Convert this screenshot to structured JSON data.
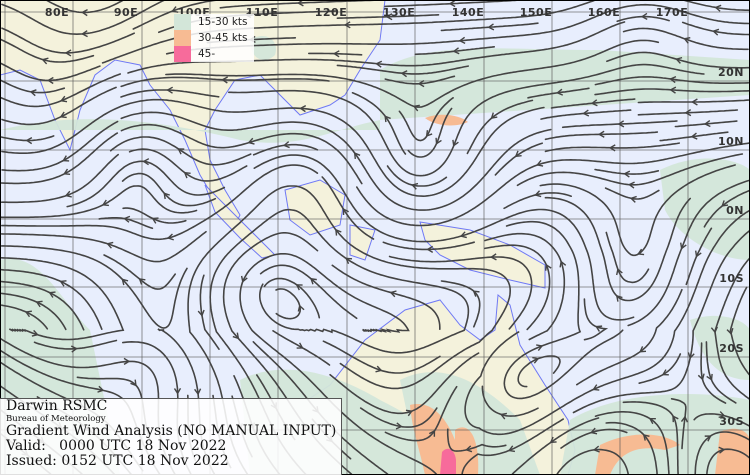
{
  "map": {
    "longitude_labels": [
      "80E",
      "90E",
      "100E",
      "110E",
      "120E",
      "130E",
      "140E",
      "150E",
      "160E",
      "170E"
    ],
    "latitude_labels": [
      "20N",
      "10N",
      "0N",
      "10S",
      "20S",
      "30S"
    ],
    "colors": {
      "ocean": "#e8eefd",
      "land": "#f4f2dc",
      "wind_15_30": "#d3e6d9",
      "wind_30_45": "#f7bb93",
      "wind_45_plus": "#f76b9b",
      "streamline": "#444444",
      "coastline": "#6f79f5",
      "grid": "#555555"
    }
  },
  "legend": {
    "items": [
      {
        "label": "15-30 kts",
        "color": "#d3e6d9"
      },
      {
        "label": "30-45 kts",
        "color": "#f7bb93"
      },
      {
        "label": "45-",
        "color": "#f76b9b"
      }
    ]
  },
  "info": {
    "centre": "Darwin RSMC",
    "agency": "Bureau of Meteorology",
    "product": "Gradient Wind Analysis (NO MANUAL INPUT)",
    "valid": "Valid:   0000 UTC 18 Nov 2022",
    "issued": "Issued: 0152 UTC 18 Nov 2022"
  }
}
